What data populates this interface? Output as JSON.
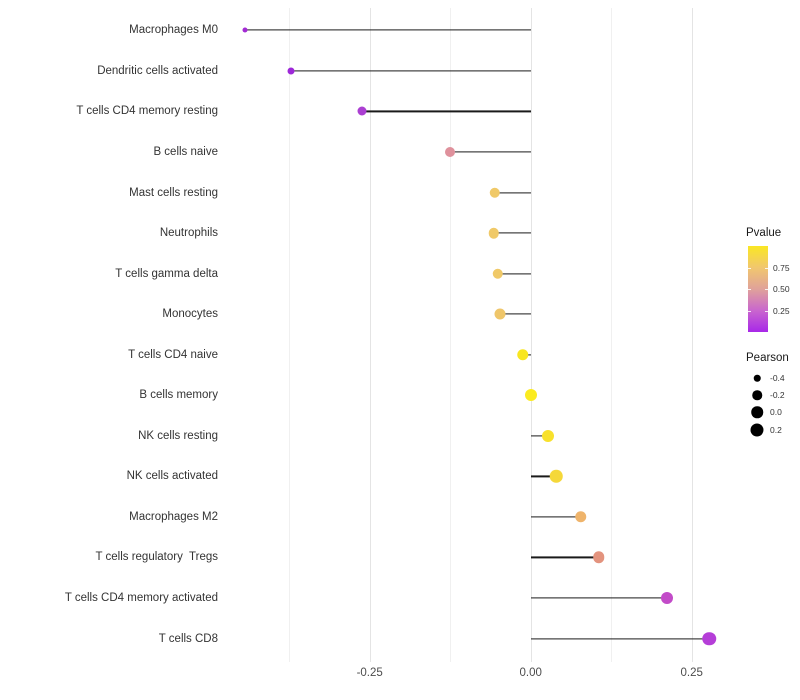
{
  "chart_data": {
    "type": "scatter",
    "subtype": "lollipop",
    "orientation": "horizontal",
    "title": "",
    "xlabel": "",
    "ylabel": "",
    "xlim": [
      -0.47,
      0.32
    ],
    "x_ticks": [
      {
        "value": -0.25,
        "label": "-0.25"
      },
      {
        "value": 0.0,
        "label": "0.00"
      },
      {
        "value": 0.25,
        "label": "0.25"
      }
    ],
    "x_minor_gridlines": [
      -0.375,
      -0.125,
      0.125
    ],
    "grid": "vertical-only",
    "points": [
      {
        "label": "Macrophages M0",
        "pearson": -0.443,
        "pvalue": 0.03,
        "color": "#a32bd4",
        "size": 5
      },
      {
        "label": "Dendritic cells activated",
        "pearson": -0.372,
        "pvalue": 0.04,
        "color": "#9d28d8",
        "size": 7
      },
      {
        "label": "T cells CD4 memory resting",
        "pearson": -0.262,
        "pvalue": 0.1,
        "color": "#ab3fd2",
        "size": 9
      },
      {
        "label": "B cells naive",
        "pearson": -0.125,
        "pvalue": 0.55,
        "color": "#df919c",
        "size": 10
      },
      {
        "label": "Mast cells resting",
        "pearson": -0.056,
        "pvalue": 0.78,
        "color": "#f0c968",
        "size": 10.5
      },
      {
        "label": "Neutrophils",
        "pearson": -0.057,
        "pvalue": 0.78,
        "color": "#f0c968",
        "size": 10.5
      },
      {
        "label": "T cells gamma delta",
        "pearson": -0.051,
        "pvalue": 0.78,
        "color": "#f0c968",
        "size": 10.5
      },
      {
        "label": "Monocytes",
        "pearson": -0.047,
        "pvalue": 0.77,
        "color": "#efc66a",
        "size": 11
      },
      {
        "label": "T cells CD4 naive",
        "pearson": -0.012,
        "pvalue": 0.97,
        "color": "#f8e620",
        "size": 11.5
      },
      {
        "label": "B cells memory",
        "pearson": 0.0,
        "pvalue": 0.98,
        "color": "#fbeb20",
        "size": 12
      },
      {
        "label": "NK cells resting",
        "pearson": 0.027,
        "pvalue": 0.93,
        "color": "#f8e12c",
        "size": 12
      },
      {
        "label": "NK cells activated",
        "pearson": 0.04,
        "pvalue": 0.88,
        "color": "#f5d83a",
        "size": 12.5
      },
      {
        "label": "Macrophages M2",
        "pearson": 0.078,
        "pvalue": 0.72,
        "color": "#efb46b",
        "size": 11.5
      },
      {
        "label": "T cells regulatory  Tregs",
        "pearson": 0.106,
        "pvalue": 0.6,
        "color": "#e3937e",
        "size": 11.5
      },
      {
        "label": "T cells CD4 memory activated",
        "pearson": 0.212,
        "pvalue": 0.22,
        "color": "#c24bc8",
        "size": 12
      },
      {
        "label": "T cells CD8",
        "pearson": 0.277,
        "pvalue": 0.15,
        "color": "#b53ed8",
        "size": 13.5
      }
    ],
    "legend_position": "right",
    "legends": {
      "pvalue": {
        "title": "Pvalue",
        "scale_min": 0,
        "scale_max": 1,
        "ticks": [
          {
            "value": 0.75,
            "label": "0.75"
          },
          {
            "value": 0.5,
            "label": "0.50"
          },
          {
            "value": 0.25,
            "label": "0.25"
          }
        ],
        "gradient_stops_bottom_to_top": [
          "#a828e8",
          "#c966ce",
          "#e0a29a",
          "#f1c76e",
          "#fae723"
        ]
      },
      "pearson": {
        "title": "Pearson",
        "entries": [
          {
            "label": "-0.4",
            "size": 6.5
          },
          {
            "label": "-0.2",
            "size": 9.5
          },
          {
            "label": "0.0",
            "size": 11.5
          },
          {
            "label": "0.2",
            "size": 13
          }
        ],
        "dot_color": "#000000"
      }
    },
    "colors": {
      "background": "#ffffff",
      "stem": "#1a1a1a",
      "grid_major": "#e4e4e4",
      "grid_minor": "#f0f0f0",
      "x_tick_text": "#4d4d4d",
      "y_label_text": "#333333"
    }
  }
}
